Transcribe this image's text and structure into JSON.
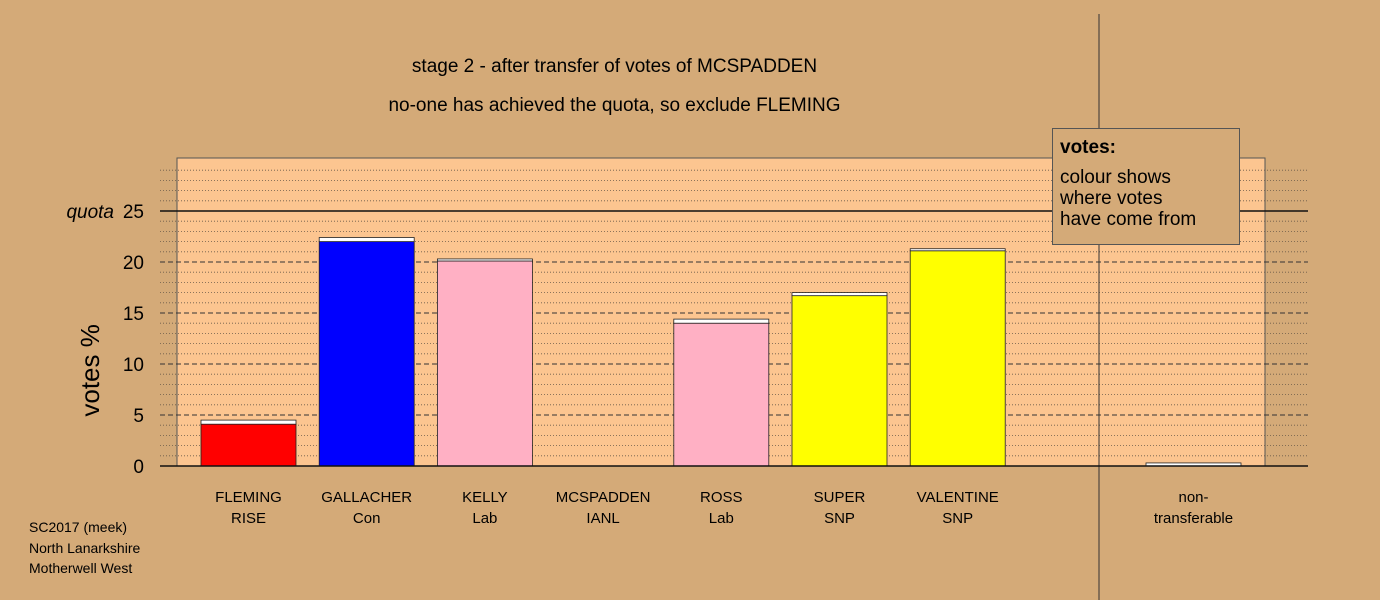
{
  "title": {
    "line1": "stage 2 - after transfer of votes of MCSPADDEN",
    "line2": "no-one has achieved the quota, so exclude FLEMING"
  },
  "legend": {
    "title": "votes:",
    "lines": [
      "colour shows",
      "where votes",
      "have come from"
    ]
  },
  "footer": {
    "lines": [
      "SC2017 (meek)",
      "North Lanarkshire",
      "Motherwell West"
    ]
  },
  "colors": {
    "background": "#d4aa78",
    "plot_area": "#fcc590",
    "RISE": "#ff0000",
    "Con": "#0000ff",
    "Lab": "#ffb0c4",
    "SNP": "#ffff00",
    "transfer": "#ffffff"
  },
  "chart_data": {
    "type": "bar",
    "ylabel": "votes %",
    "quota_label": "quota",
    "quota": 25,
    "ylim": [
      0,
      30
    ],
    "yticks": [
      0,
      5,
      10,
      15,
      20,
      25
    ],
    "categories": [
      {
        "name": "FLEMING",
        "party": "RISE",
        "first": 4.1,
        "transfer": 0.4,
        "color": "#ff0000"
      },
      {
        "name": "GALLACHER",
        "party": "Con",
        "first": 22.0,
        "transfer": 0.4,
        "color": "#0000ff"
      },
      {
        "name": "KELLY",
        "party": "Lab",
        "first": 20.1,
        "transfer": 0.2,
        "color": "#ffb0c4"
      },
      {
        "name": "MCSPADDEN",
        "party": "IANL",
        "first": 0,
        "transfer": 0,
        "color": "#ffffff"
      },
      {
        "name": "ROSS",
        "party": "Lab",
        "first": 14.0,
        "transfer": 0.4,
        "color": "#ffb0c4"
      },
      {
        "name": "SUPER",
        "party": "SNP",
        "first": 16.7,
        "transfer": 0.3,
        "color": "#ffff00"
      },
      {
        "name": "VALENTINE",
        "party": "SNP",
        "first": 21.1,
        "transfer": 0.2,
        "color": "#ffff00"
      }
    ],
    "nontransferable": {
      "label": "non-\ntransferable",
      "line1": "non-",
      "line2": "transferable",
      "value": 0.3
    }
  }
}
